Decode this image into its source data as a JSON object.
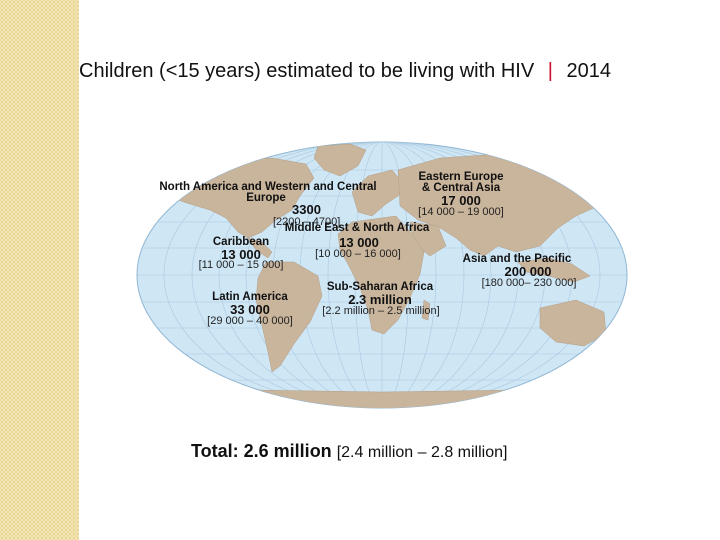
{
  "title": {
    "text": "Children (<15 years) estimated to be living with HIV",
    "separator": "|",
    "year": "2014"
  },
  "colors": {
    "ocean": "#cfe6f5",
    "land": "#c9b49c",
    "grid": "#a9c9e0",
    "separator": "#c8102e",
    "side_band": "#f3e6b4"
  },
  "regions": {
    "north_america": {
      "name_line1": "North America and Western and Central",
      "name_line2": "Europe",
      "value": "3300",
      "range": "[2200 – 4700]"
    },
    "eastern_europe": {
      "name_line1": "Eastern Europe",
      "name_line2": "& Central Asia",
      "value": "17 000",
      "range": "[14 000 – 19 000]"
    },
    "middle_east": {
      "name": "Middle East & North Africa",
      "value": "13 000",
      "range": "[10 000 – 16 000]"
    },
    "caribbean": {
      "name": "Caribbean",
      "value": "13 000",
      "range": "[11 000 – 15 000]"
    },
    "asia_pacific": {
      "name": "Asia and the Pacific",
      "value": "200 000",
      "range": "[180 000– 230 000]"
    },
    "sub_saharan": {
      "name": "Sub-Saharan Africa",
      "value": "2.3 million",
      "range": "[2.2 million – 2.5 million]"
    },
    "latin_america": {
      "name": "Latin America",
      "value": "33 000",
      "range": "[29 000 – 40 000]"
    }
  },
  "total": {
    "label": "Total: 2.6 million",
    "range": "[2.4 million – 2.8 million]"
  }
}
